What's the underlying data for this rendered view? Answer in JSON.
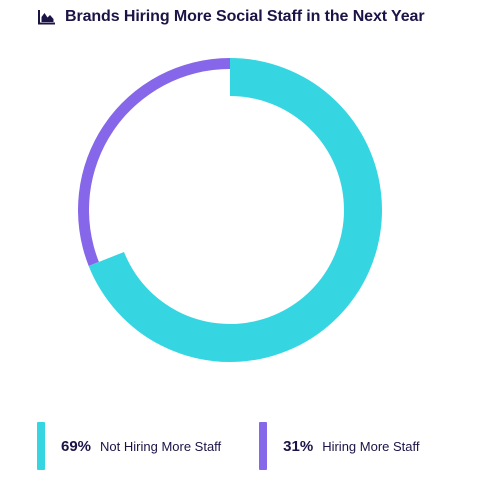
{
  "header": {
    "title": "Brands Hiring More Social Staff in the Next Year",
    "icon": "area-chart-icon"
  },
  "colors": {
    "text": "#1b1446",
    "not_hiring": "#35d6e2",
    "hiring": "#8767e9"
  },
  "chart_data": {
    "type": "pie",
    "style": "donut",
    "title": "Brands Hiring More Social Staff in the Next Year",
    "slices": [
      {
        "label": "Not Hiring More Staff",
        "value": 69,
        "display": "69%",
        "color": "#35d6e2"
      },
      {
        "label": "Hiring More Staff",
        "value": 31,
        "display": "31%",
        "color": "#8767e9"
      }
    ],
    "legend_position": "bottom"
  }
}
